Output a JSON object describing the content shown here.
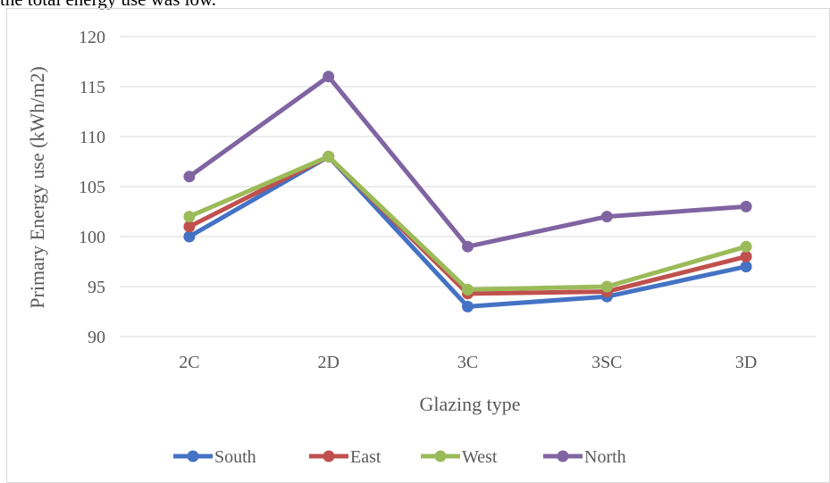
{
  "page": {
    "caption_fragment": "the total energy use was low."
  },
  "chart_data": {
    "type": "line",
    "categories": [
      "2C",
      "2D",
      "3C",
      "3SC",
      "3D"
    ],
    "series": [
      {
        "name": "South",
        "color": "#4472C4",
        "values": [
          100,
          108,
          93,
          94,
          97
        ]
      },
      {
        "name": "East",
        "color": "#C0504D",
        "values": [
          101,
          108,
          94.3,
          94.5,
          98
        ]
      },
      {
        "name": "West",
        "color": "#9BBB59",
        "values": [
          102,
          108,
          94.7,
          95,
          99
        ]
      },
      {
        "name": "North",
        "color": "#8064A2",
        "values": [
          106,
          116,
          99,
          102,
          103
        ]
      }
    ],
    "xlabel": "Glazing type",
    "ylabel": "Primary Energy use (kWh/m2)",
    "ylim": [
      90,
      120
    ],
    "yticks": [
      90,
      95,
      100,
      105,
      110,
      115,
      120
    ],
    "grid": true,
    "legend": "bottom",
    "colors": {
      "grid": "#D9D9D9",
      "text": "#595959",
      "border": "#D9D9D9"
    }
  }
}
